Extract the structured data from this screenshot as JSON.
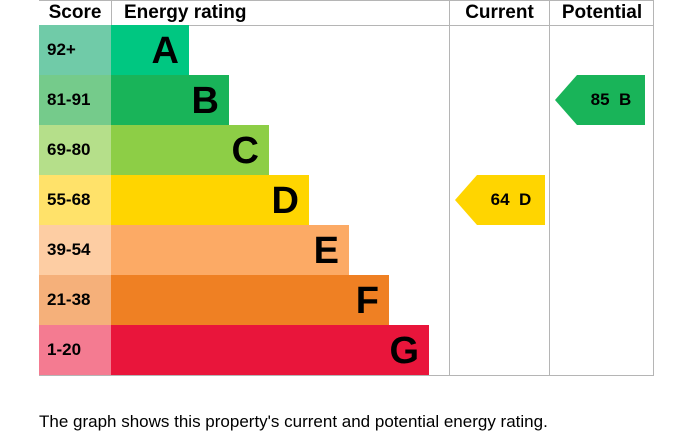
{
  "headers": {
    "score": "Score",
    "rating": "Energy rating",
    "current": "Current",
    "potential": "Potential"
  },
  "chart_data": {
    "type": "bar",
    "bands": [
      {
        "score": "92+",
        "letter": "A",
        "color": "#00c781",
        "score_color": "#70cba8"
      },
      {
        "score": "81-91",
        "letter": "B",
        "color": "#19b459",
        "score_color": "#75cb8b"
      },
      {
        "score": "69-80",
        "letter": "C",
        "color": "#8dce46",
        "score_color": "#b5df8a"
      },
      {
        "score": "55-68",
        "letter": "D",
        "color": "#ffd500",
        "score_color": "#ffe26a"
      },
      {
        "score": "39-54",
        "letter": "E",
        "color": "#fcaa65",
        "score_color": "#fdcda3"
      },
      {
        "score": "21-38",
        "letter": "F",
        "color": "#ef8023",
        "score_color": "#f5b07a"
      },
      {
        "score": "1-20",
        "letter": "G",
        "color": "#e9153b",
        "score_color": "#f47b91"
      }
    ],
    "current": {
      "value": 64,
      "band": "D",
      "label": "64  D",
      "color": "#ffd500"
    },
    "potential": {
      "value": 85,
      "band": "B",
      "label": "85  B",
      "color": "#19b459"
    }
  },
  "caption": "The graph shows this property's current and potential energy rating."
}
